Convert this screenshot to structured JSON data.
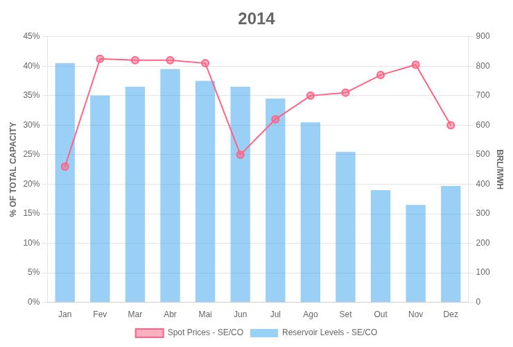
{
  "chart_data": {
    "type": "bar",
    "title": "2014",
    "categories": [
      "Jan",
      "Fev",
      "Mar",
      "Abr",
      "Mai",
      "Jun",
      "Jul",
      "Ago",
      "Set",
      "Out",
      "Nov",
      "Dez"
    ],
    "series": [
      {
        "name": "Reservoir Levels - SE/CO",
        "type": "bar",
        "values": [
          0.405,
          0.35,
          0.365,
          0.395,
          0.375,
          0.365,
          0.345,
          0.305,
          0.255,
          0.19,
          0.165,
          0.197
        ]
      },
      {
        "name": "Spot Prices - SE/CO",
        "type": "line",
        "marker": "circle",
        "axis": "y2",
        "values": [
          460,
          825,
          820,
          820,
          810,
          500,
          620,
          700,
          710,
          770,
          805,
          600
        ]
      }
    ],
    "ylabel": "% OF TOTAL CAPACITY",
    "y2label": "BRL/MWH",
    "ylim": [
      0,
      0.45
    ],
    "yticks": [
      {
        "value": 0,
        "label": "0%"
      },
      {
        "value": 0.05,
        "label": "5%"
      },
      {
        "value": 0.1,
        "label": "10%"
      },
      {
        "value": 0.15,
        "label": "15%"
      },
      {
        "value": 0.2,
        "label": "20%"
      },
      {
        "value": 0.25,
        "label": "25%"
      },
      {
        "value": 0.3,
        "label": "30%"
      },
      {
        "value": 0.35,
        "label": "35%"
      },
      {
        "value": 0.4,
        "label": "40%"
      },
      {
        "value": 0.45,
        "label": "45%"
      }
    ],
    "y2lim": [
      0,
      900
    ],
    "y2ticks": [
      0,
      100,
      200,
      300,
      400,
      500,
      600,
      700,
      800,
      900
    ],
    "grid": true,
    "legend": "bottom"
  }
}
